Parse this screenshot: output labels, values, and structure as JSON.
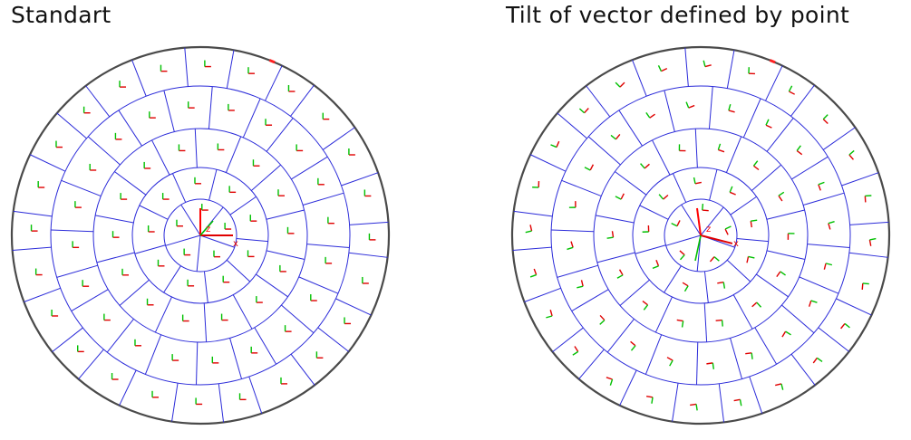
{
  "panels": [
    {
      "id": "left",
      "title": "Standart",
      "mode": "standard"
    },
    {
      "id": "right",
      "title": "Tilt of vector defined by point",
      "mode": "tilt"
    }
  ],
  "origin_axes": {
    "x_label": "x",
    "z_label": "z"
  },
  "colors": {
    "background": "#ffffff",
    "boundary": "#4a4a4a",
    "mesh": "#2b2bd9",
    "vector_x": "#e00000",
    "vector_y": "#00c000",
    "vector_z": "#ff0000",
    "highlight": "#ff2020"
  }
}
